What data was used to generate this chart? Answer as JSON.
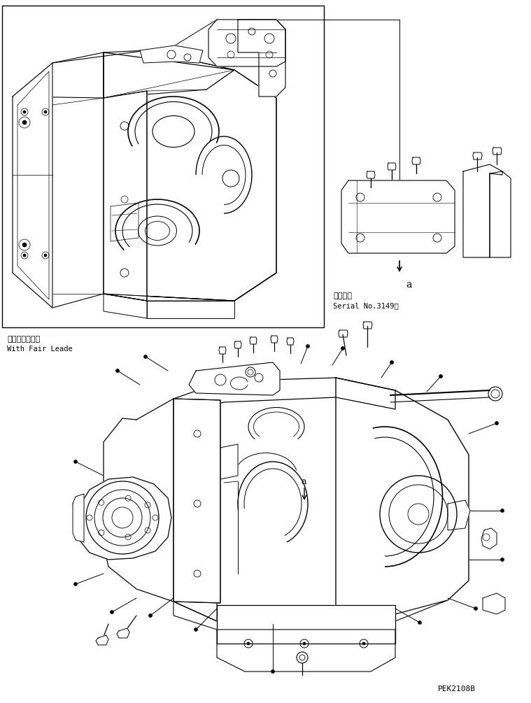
{
  "background_color": "#ffffff",
  "line_color": "#000000",
  "title_code": "PEK2108B",
  "label_fairlead_jp": "フェアリード付",
  "label_fairlead_en": "With Fair Leade",
  "label_applicable_jp": "適用号機",
  "label_serial": "Serial No.3149～",
  "label_a": "a",
  "figsize": [
    7.59,
    10.05
  ],
  "dpi": 100
}
